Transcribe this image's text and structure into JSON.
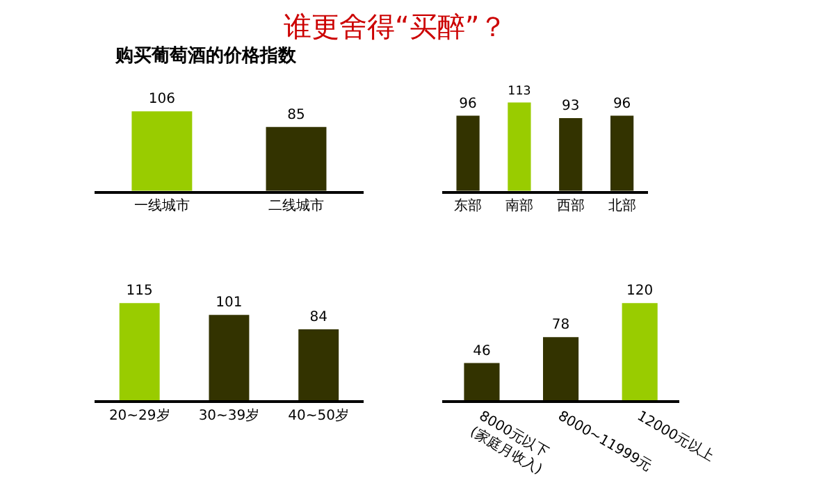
{
  "chart_data": [
    {
      "type": "bar",
      "title": "谁更舍得“买醉”？",
      "subtitle": "购买葡萄酒的价格指数",
      "categories": [
        "一线城市",
        "二线城市"
      ],
      "values": [
        106,
        85
      ],
      "colors": [
        "#99cc00",
        "#333300"
      ],
      "data_labels": true
    },
    {
      "type": "bar",
      "categories": [
        "东部",
        "南部",
        "西部",
        "北部"
      ],
      "values": [
        96,
        113,
        93,
        96
      ],
      "colors": [
        "#333300",
        "#99cc00",
        "#333300",
        "#333300"
      ],
      "data_labels": true
    },
    {
      "type": "bar",
      "categories": [
        "20~29岁",
        "30~39岁",
        "40~50岁"
      ],
      "values": [
        115,
        101,
        84
      ],
      "colors": [
        "#99cc00",
        "#333300",
        "#333300"
      ],
      "data_labels": true
    },
    {
      "type": "bar",
      "categories": [
        "8000元以下\n(家庭月收入)",
        "8000~11999元",
        "12000元以上"
      ],
      "values": [
        46,
        78,
        120
      ],
      "colors": [
        "#333300",
        "#333300",
        "#99cc00"
      ],
      "data_labels": true
    }
  ]
}
